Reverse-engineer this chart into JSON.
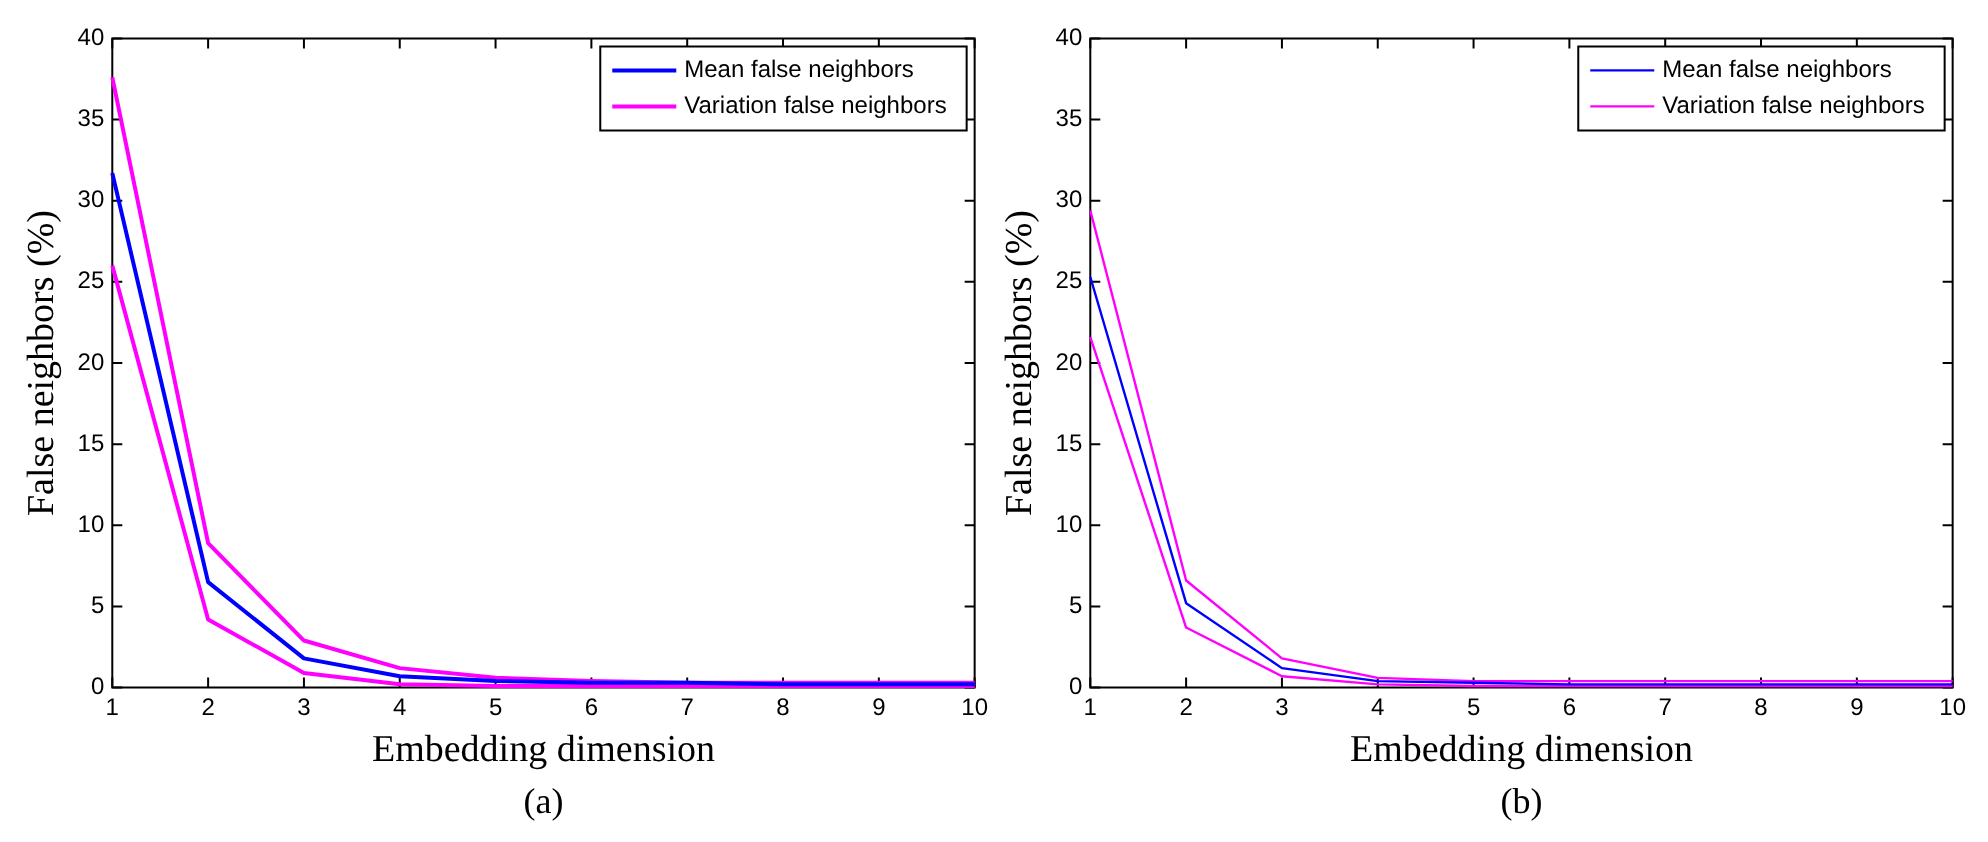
{
  "chart_data": [
    {
      "type": "line",
      "xlabel": "Embedding dimension",
      "ylabel": "False neighbors (%)",
      "annotations": [
        "(a)"
      ],
      "x": [
        1,
        2,
        3,
        4,
        5,
        6,
        7,
        8,
        9,
        10
      ],
      "series": [
        {
          "name": "Mean false neighbors",
          "color": "#0000ff",
          "values": [
            31.7,
            6.5,
            1.8,
            0.7,
            0.4,
            0.3,
            0.3,
            0.2,
            0.2,
            0.2
          ]
        },
        {
          "name": "Variation false neighbors",
          "color": "#ff00ff",
          "values": [
            37.6,
            8.9,
            2.9,
            1.2,
            0.6,
            0.4,
            0.3,
            0.3,
            0.3,
            0.3
          ]
        },
        {
          "color": "#ff00ff",
          "values": [
            26.0,
            4.2,
            0.9,
            0.2,
            0.1,
            0.1,
            0.1,
            0.1,
            0.1,
            0.1
          ]
        }
      ],
      "xlim": [
        1,
        10
      ],
      "xticks": [
        1,
        2,
        3,
        4,
        5,
        6,
        7,
        8,
        9,
        10
      ],
      "ylim": [
        0,
        40
      ],
      "yticks": [
        0,
        5,
        10,
        15,
        20,
        25,
        30,
        35,
        40
      ],
      "grid": false,
      "legend": "top right",
      "marker": "none",
      "line_style": "solid"
    },
    {
      "type": "line",
      "xlabel": "Embedding dimension",
      "ylabel": "False neighbors (%)",
      "annotations": [
        "(b)"
      ],
      "x": [
        1,
        2,
        3,
        4,
        5,
        6,
        7,
        8,
        9,
        10
      ],
      "series": [
        {
          "name": "Mean false neighbors",
          "color": "#0000ff",
          "values": [
            25.3,
            5.2,
            1.2,
            0.4,
            0.3,
            0.2,
            0.2,
            0.2,
            0.2,
            0.2
          ]
        },
        {
          "name": "Variation false neighbors",
          "color": "#ff00ff",
          "values": [
            29.4,
            6.6,
            1.8,
            0.6,
            0.4,
            0.4,
            0.4,
            0.4,
            0.4,
            0.4
          ]
        },
        {
          "color": "#ff00ff",
          "values": [
            21.6,
            3.7,
            0.7,
            0.2,
            0.1,
            0.1,
            0.1,
            0.1,
            0.1,
            0.1
          ]
        }
      ],
      "xlim": [
        1,
        10
      ],
      "xticks": [
        1,
        2,
        3,
        4,
        5,
        6,
        7,
        8,
        9,
        10
      ],
      "ylim": [
        0,
        40
      ],
      "yticks": [
        0,
        5,
        10,
        15,
        20,
        25,
        30,
        35,
        40
      ],
      "grid": false,
      "legend": "top right",
      "marker": "none",
      "line_style": "solid"
    }
  ]
}
